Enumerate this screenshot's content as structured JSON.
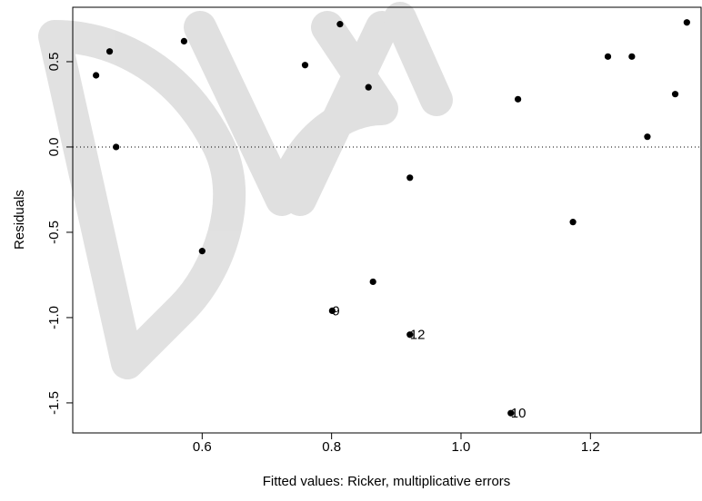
{
  "chart_data": {
    "type": "scatter",
    "xlabel": "Fitted values: Ricker, multiplicative errors",
    "ylabel": "Residuals",
    "x": [
      0.436,
      0.457,
      0.467,
      0.572,
      0.6,
      0.759,
      0.813,
      0.857,
      0.864,
      0.921,
      0.801,
      0.921,
      1.077,
      1.088,
      1.173,
      1.227,
      1.264,
      1.288,
      1.331,
      1.349
    ],
    "values": [
      0.42,
      0.56,
      0.0,
      0.62,
      -0.61,
      0.48,
      0.72,
      0.35,
      -0.79,
      -0.18,
      -0.96,
      -1.1,
      -1.56,
      0.28,
      -0.44,
      0.53,
      0.53,
      0.06,
      0.31,
      0.73
    ],
    "labels": [
      null,
      null,
      null,
      null,
      null,
      null,
      null,
      null,
      null,
      null,
      "9",
      "12",
      "10",
      null,
      null,
      null,
      null,
      null,
      null,
      null
    ],
    "color": "#000000",
    "reference_line": 0,
    "xlim": [
      0.4,
      1.371
    ],
    "ylim": [
      -1.676,
      0.819
    ],
    "xticks": [
      0.6,
      0.8,
      {
        "value": 1,
        "label": "1.0"
      },
      1.2
    ],
    "yticks": [
      {
        "value": -1.5,
        "label": "-1.5"
      },
      {
        "value": -1,
        "label": "-1.0"
      },
      -0.5,
      {
        "value": 0,
        "label": "0.0"
      },
      0.5
    ]
  }
}
